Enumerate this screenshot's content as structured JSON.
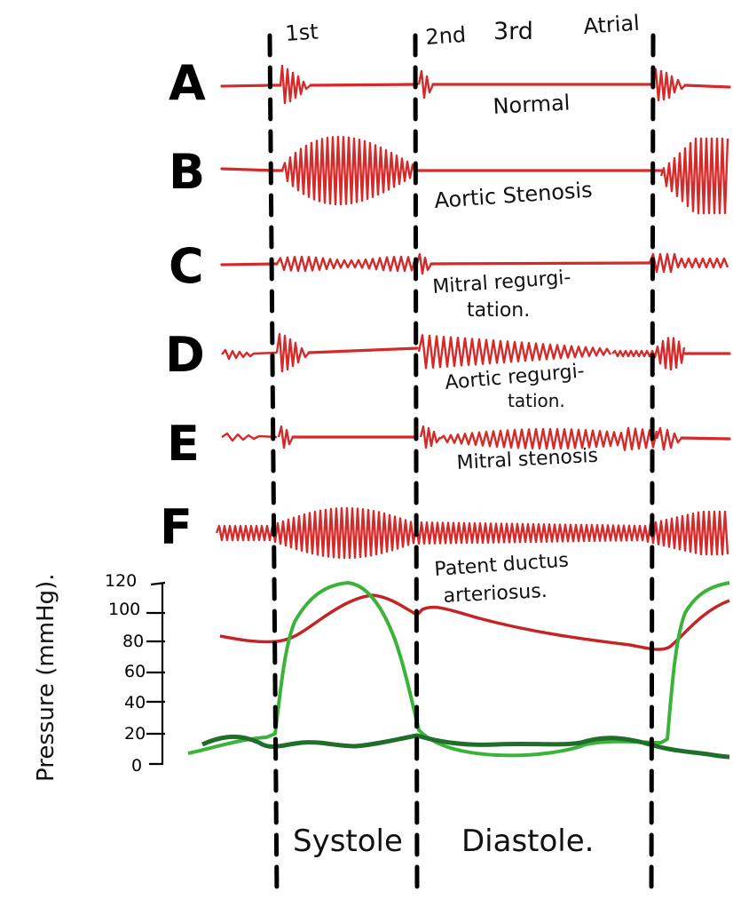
{
  "sounds": {
    "first": "1st",
    "second": "2nd",
    "third": "3rd",
    "atrial": "Atrial"
  },
  "rows": [
    {
      "letter": "A",
      "label": "Normal"
    },
    {
      "letter": "B",
      "label": "Aortic Stenosis"
    },
    {
      "letter": "C",
      "label_line1": "Mitral regurgi-",
      "label_line2": "tation."
    },
    {
      "letter": "D",
      "label_line1": "Aortic regurgi-",
      "label_line2": "tation."
    },
    {
      "letter": "E",
      "label": "Mitral stenosis"
    },
    {
      "letter": "F",
      "label_line1": "Patent ductus",
      "label_line2": "arteriosus."
    }
  ],
  "pressure_axis": {
    "title": "Pressure (mmHg).",
    "ticks": [
      "120",
      "100",
      "80",
      "60",
      "40",
      "20",
      "0"
    ]
  },
  "phases": {
    "systole": "Systole",
    "diastole": "Diastole."
  },
  "colors": {
    "murmur": "#d42a2a",
    "aortic_pressure": "#c42424",
    "ventricular_pressure": "#3bb33b",
    "atrial_pressure": "#1f6e2a"
  }
}
